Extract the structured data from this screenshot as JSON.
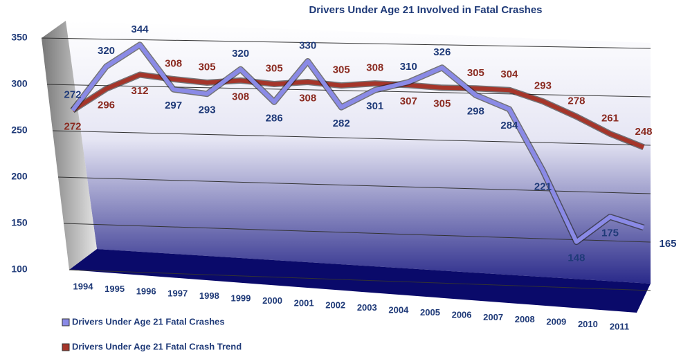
{
  "chart_data": {
    "type": "line",
    "title": "Drivers Under Age 21 Involved in Fatal Crashes",
    "categories": [
      "1994",
      "1995",
      "1996",
      "1997",
      "1998",
      "1999",
      "2000",
      "2001",
      "2002",
      "2003",
      "2004",
      "2005",
      "2006",
      "2007",
      "2008",
      "2009",
      "2010",
      "2011"
    ],
    "series": [
      {
        "name": "Drivers Under Age 21 Fatal Crashes",
        "color": "#8a8ae6",
        "values": [
          272,
          320,
          344,
          297,
          293,
          320,
          286,
          330,
          282,
          301,
          310,
          326,
          298,
          284,
          221,
          148,
          175,
          165
        ]
      },
      {
        "name": "Drivers Under Age 21 Fatal Crash Trend",
        "color": "#a5352a",
        "values": [
          272,
          296,
          312,
          308,
          305,
          308,
          305,
          308,
          305,
          308,
          307,
          305,
          305,
          304,
          293,
          278,
          261,
          248
        ]
      }
    ],
    "ylim": [
      100,
      350
    ],
    "yticks": [
      100,
      150,
      200,
      250,
      300,
      350
    ],
    "grid": true
  }
}
